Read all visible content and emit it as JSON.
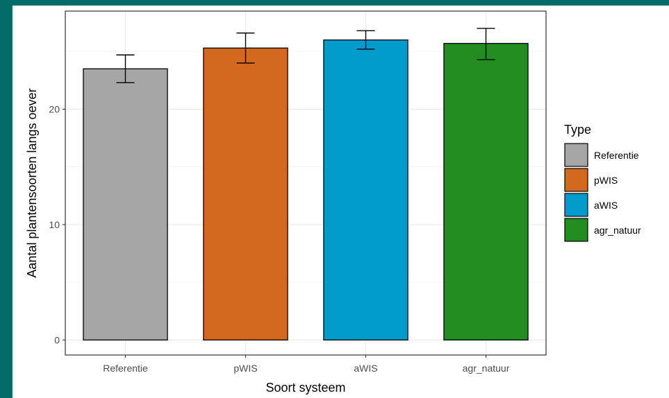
{
  "chart_data": {
    "type": "bar",
    "title": "",
    "xlabel": "Soort systeem",
    "ylabel": "Aantal plantensoorten langs oever",
    "ylim": [
      -1.3,
      28.5
    ],
    "yticks": [
      0,
      10,
      20
    ],
    "categories": [
      "Referentie",
      "pWIS",
      "aWIS",
      "agr_natuur"
    ],
    "values": [
      23.5,
      25.3,
      26.0,
      25.7
    ],
    "error_low": [
      22.3,
      24.0,
      25.2,
      24.3
    ],
    "error_high": [
      24.7,
      26.6,
      26.8,
      27.0
    ],
    "colors": [
      "#a6a6a6",
      "#d2691e",
      "#009acd",
      "#228b22"
    ],
    "grid": true,
    "legend": {
      "title": "Type",
      "position": "right",
      "items": [
        "Referentie",
        "pWIS",
        "aWIS",
        "agr_natuur"
      ]
    }
  }
}
